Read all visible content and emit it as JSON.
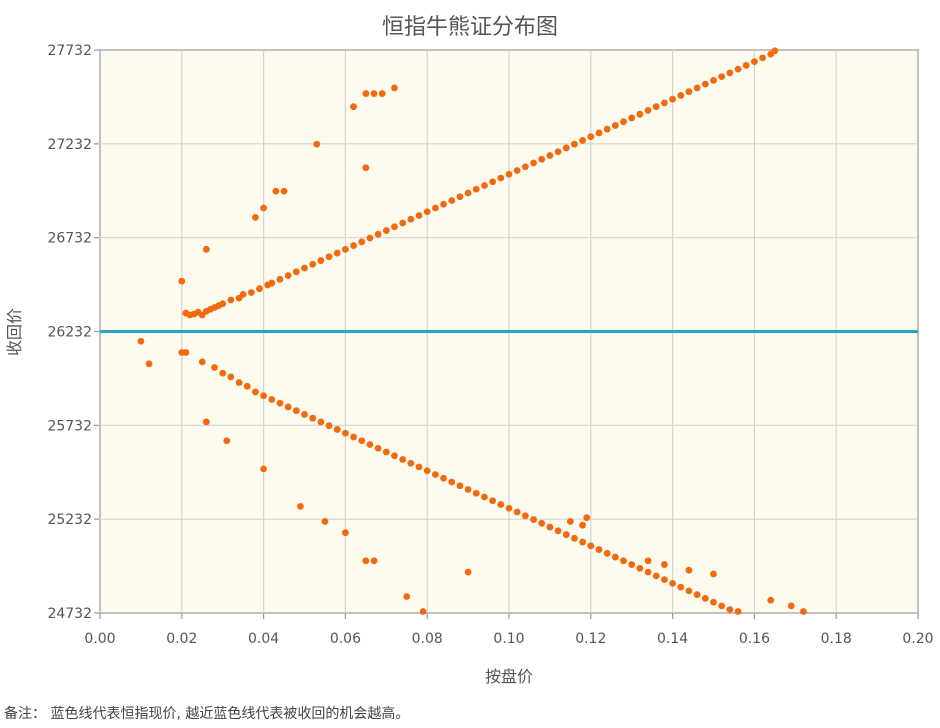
{
  "chart_data": {
    "type": "scatter",
    "title": "恒指牛熊证分布图",
    "xlabel": "按盘价",
    "ylabel": "收回价",
    "xlim": [
      0,
      0.2
    ],
    "ylim": [
      24732,
      27732
    ],
    "x_ticks": [
      "0.00",
      "0.02",
      "0.04",
      "0.06",
      "0.08",
      "0.10",
      "0.12",
      "0.14",
      "0.16",
      "0.18",
      "0.20"
    ],
    "y_ticks": [
      "24732",
      "25232",
      "25732",
      "26232",
      "26732",
      "27232",
      "27732"
    ],
    "grid": true,
    "reference_line": {
      "y": 26232,
      "color": "#2aa3c6"
    },
    "point_color": "#f26a10",
    "plot_background": "#fdfbee",
    "series": [
      {
        "points": [
          [
            0.021,
            26330
          ],
          [
            0.022,
            26320
          ],
          [
            0.023,
            26325
          ],
          [
            0.024,
            26335
          ],
          [
            0.025,
            26320
          ],
          [
            0.026,
            26340
          ],
          [
            0.027,
            26350
          ],
          [
            0.028,
            26360
          ],
          [
            0.029,
            26370
          ],
          [
            0.03,
            26380
          ],
          [
            0.032,
            26400
          ],
          [
            0.034,
            26410
          ],
          [
            0.035,
            26430
          ],
          [
            0.037,
            26440
          ],
          [
            0.039,
            26460
          ],
          [
            0.041,
            26480
          ],
          [
            0.042,
            26490
          ],
          [
            0.044,
            26510
          ],
          [
            0.046,
            26530
          ],
          [
            0.048,
            26550
          ],
          [
            0.05,
            26570
          ],
          [
            0.052,
            26590
          ],
          [
            0.054,
            26610
          ],
          [
            0.056,
            26630
          ],
          [
            0.058,
            26650
          ],
          [
            0.06,
            26670
          ],
          [
            0.062,
            26690
          ],
          [
            0.064,
            26710
          ],
          [
            0.066,
            26730
          ],
          [
            0.068,
            26750
          ],
          [
            0.07,
            26770
          ],
          [
            0.072,
            26790
          ],
          [
            0.074,
            26810
          ],
          [
            0.076,
            26830
          ],
          [
            0.078,
            26850
          ],
          [
            0.08,
            26870
          ],
          [
            0.082,
            26890
          ],
          [
            0.084,
            26910
          ],
          [
            0.086,
            26930
          ],
          [
            0.088,
            26950
          ],
          [
            0.09,
            26970
          ],
          [
            0.092,
            26990
          ],
          [
            0.094,
            27010
          ],
          [
            0.096,
            27030
          ],
          [
            0.098,
            27050
          ],
          [
            0.1,
            27070
          ],
          [
            0.102,
            27090
          ],
          [
            0.104,
            27110
          ],
          [
            0.106,
            27130
          ],
          [
            0.108,
            27150
          ],
          [
            0.11,
            27170
          ],
          [
            0.112,
            27190
          ],
          [
            0.114,
            27210
          ],
          [
            0.116,
            27230
          ],
          [
            0.118,
            27250
          ],
          [
            0.12,
            27270
          ],
          [
            0.122,
            27290
          ],
          [
            0.124,
            27310
          ],
          [
            0.126,
            27330
          ],
          [
            0.128,
            27350
          ],
          [
            0.13,
            27370
          ],
          [
            0.132,
            27390
          ],
          [
            0.134,
            27410
          ],
          [
            0.136,
            27430
          ],
          [
            0.138,
            27450
          ],
          [
            0.14,
            27470
          ],
          [
            0.142,
            27490
          ],
          [
            0.144,
            27510
          ],
          [
            0.146,
            27530
          ],
          [
            0.148,
            27550
          ],
          [
            0.15,
            27570
          ],
          [
            0.152,
            27590
          ],
          [
            0.154,
            27610
          ],
          [
            0.156,
            27630
          ],
          [
            0.158,
            27650
          ],
          [
            0.16,
            27670
          ],
          [
            0.162,
            27690
          ],
          [
            0.164,
            27710
          ],
          [
            0.165,
            27728
          ],
          [
            0.02,
            26500
          ],
          [
            0.026,
            26670
          ],
          [
            0.038,
            26840
          ],
          [
            0.04,
            26890
          ],
          [
            0.043,
            26980
          ],
          [
            0.045,
            26980
          ],
          [
            0.053,
            27230
          ],
          [
            0.062,
            27430
          ],
          [
            0.065,
            27500
          ],
          [
            0.067,
            27500
          ],
          [
            0.069,
            27500
          ],
          [
            0.072,
            27530
          ],
          [
            0.065,
            27105
          ]
        ]
      },
      {
        "points": [
          [
            0.01,
            26180
          ],
          [
            0.012,
            26060
          ],
          [
            0.02,
            26120
          ],
          [
            0.021,
            26120
          ],
          [
            0.025,
            26070
          ],
          [
            0.028,
            26040
          ],
          [
            0.03,
            26010
          ],
          [
            0.032,
            25990
          ],
          [
            0.034,
            25960
          ],
          [
            0.036,
            25940
          ],
          [
            0.038,
            25910
          ],
          [
            0.04,
            25890
          ],
          [
            0.042,
            25870
          ],
          [
            0.044,
            25850
          ],
          [
            0.046,
            25830
          ],
          [
            0.048,
            25810
          ],
          [
            0.05,
            25790
          ],
          [
            0.052,
            25770
          ],
          [
            0.054,
            25750
          ],
          [
            0.056,
            25730
          ],
          [
            0.058,
            25710
          ],
          [
            0.06,
            25690
          ],
          [
            0.062,
            25670
          ],
          [
            0.064,
            25650
          ],
          [
            0.066,
            25630
          ],
          [
            0.068,
            25610
          ],
          [
            0.07,
            25590
          ],
          [
            0.072,
            25570
          ],
          [
            0.074,
            25550
          ],
          [
            0.076,
            25530
          ],
          [
            0.078,
            25510
          ],
          [
            0.08,
            25490
          ],
          [
            0.082,
            25470
          ],
          [
            0.084,
            25450
          ],
          [
            0.086,
            25430
          ],
          [
            0.088,
            25410
          ],
          [
            0.09,
            25390
          ],
          [
            0.092,
            25370
          ],
          [
            0.094,
            25350
          ],
          [
            0.096,
            25330
          ],
          [
            0.098,
            25310
          ],
          [
            0.1,
            25290
          ],
          [
            0.102,
            25270
          ],
          [
            0.104,
            25250
          ],
          [
            0.106,
            25230
          ],
          [
            0.108,
            25210
          ],
          [
            0.11,
            25190
          ],
          [
            0.112,
            25170
          ],
          [
            0.114,
            25150
          ],
          [
            0.116,
            25130
          ],
          [
            0.118,
            25110
          ],
          [
            0.12,
            25090
          ],
          [
            0.122,
            25070
          ],
          [
            0.124,
            25050
          ],
          [
            0.126,
            25030
          ],
          [
            0.128,
            25010
          ],
          [
            0.13,
            24990
          ],
          [
            0.132,
            24970
          ],
          [
            0.134,
            24950
          ],
          [
            0.136,
            24930
          ],
          [
            0.138,
            24910
          ],
          [
            0.14,
            24890
          ],
          [
            0.142,
            24870
          ],
          [
            0.144,
            24850
          ],
          [
            0.146,
            24830
          ],
          [
            0.148,
            24810
          ],
          [
            0.15,
            24790
          ],
          [
            0.152,
            24770
          ],
          [
            0.154,
            24750
          ],
          [
            0.156,
            24740
          ],
          [
            0.026,
            25750
          ],
          [
            0.031,
            25650
          ],
          [
            0.04,
            25500
          ],
          [
            0.049,
            25300
          ],
          [
            0.055,
            25220
          ],
          [
            0.06,
            25160
          ],
          [
            0.065,
            25010
          ],
          [
            0.067,
            25010
          ],
          [
            0.075,
            24820
          ],
          [
            0.079,
            24740
          ],
          [
            0.09,
            24950
          ],
          [
            0.164,
            24800
          ],
          [
            0.169,
            24770
          ],
          [
            0.172,
            24740
          ],
          [
            0.134,
            25010
          ],
          [
            0.138,
            24990
          ],
          [
            0.144,
            24960
          ],
          [
            0.15,
            24940
          ],
          [
            0.115,
            25220
          ],
          [
            0.118,
            25200
          ],
          [
            0.119,
            25240
          ]
        ]
      }
    ]
  },
  "footnote": "备注：  蓝色线代表恒指现价, 越近蓝色线代表被收回的机会越高。"
}
